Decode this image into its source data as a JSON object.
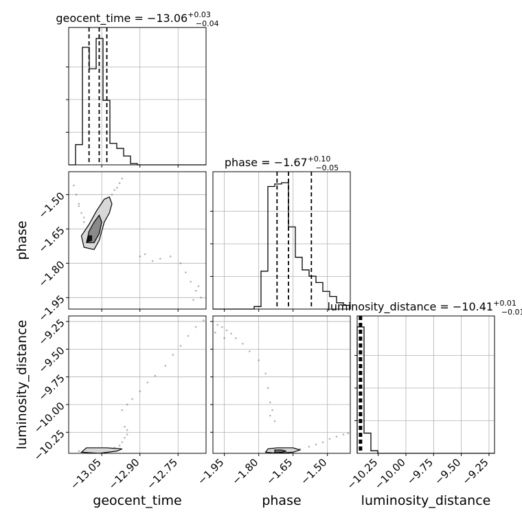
{
  "chart_data": {
    "type": "corner",
    "grid": true,
    "parameters": [
      {
        "name": "geocent_time",
        "axis_label": "geocent_time",
        "median": "−13.06",
        "plus": "+0.03",
        "minus": "−0.04",
        "range": [
          -13.18,
          -12.64
        ],
        "ticks": [
          -13.05,
          -12.9,
          -12.75
        ],
        "tick_labels": [
          "−13.05",
          "−12.90",
          "−12.75"
        ],
        "quantiles": [
          -13.1,
          -13.06,
          -13.03
        ],
        "hist_edges": [
          -13.18,
          -13.153,
          -13.126,
          -13.099,
          -13.072,
          -13.045,
          -13.018,
          -12.991,
          -12.964,
          -12.937,
          -12.91,
          -12.883,
          -12.856,
          -12.829,
          -12.802,
          -12.775,
          -12.748,
          -12.721,
          -12.694,
          -12.667,
          -12.64
        ],
        "hist_counts": [
          0.0,
          0.16,
          0.93,
          0.76,
          1.0,
          0.51,
          0.17,
          0.13,
          0.07,
          0.01,
          0.0,
          0.0,
          0.0,
          0.0,
          0.0,
          0.0,
          0.0,
          0.0,
          0.0,
          0.0
        ]
      },
      {
        "name": "phase",
        "axis_label": "phase",
        "median": "−1.67",
        "plus": "+0.10",
        "minus": "−0.05",
        "range": [
          -2.0,
          -1.4
        ],
        "ticks": [
          -1.95,
          -1.8,
          -1.65,
          -1.5
        ],
        "tick_labels": [
          "−1.95",
          "−1.80",
          "−1.65",
          "−1.50"
        ],
        "quantiles": [
          -1.72,
          -1.67,
          -1.57
        ],
        "hist_edges": [
          -2.0,
          -1.97,
          -1.94,
          -1.91,
          -1.88,
          -1.85,
          -1.82,
          -1.79,
          -1.76,
          -1.73,
          -1.7,
          -1.67,
          -1.64,
          -1.61,
          -1.58,
          -1.55,
          -1.52,
          -1.49,
          -1.46,
          -1.43,
          -1.4
        ],
        "hist_counts": [
          0.0,
          0.0,
          0.0,
          0.0,
          0.0,
          0.0,
          0.02,
          0.3,
          0.97,
          0.99,
          1.0,
          0.65,
          0.41,
          0.31,
          0.26,
          0.21,
          0.14,
          0.1,
          0.05,
          0.03
        ]
      },
      {
        "name": "luminosity_distance",
        "axis_label": "luminosity_distance",
        "median": "−10.41",
        "plus": "+0.01",
        "minus": "−0.01",
        "range": [
          -10.44,
          -9.2
        ],
        "ticks": [
          -10.25,
          -10.0,
          -9.75,
          -9.5,
          -9.25
        ],
        "tick_labels": [
          "−10.25",
          "−10.00",
          "−9.75",
          "−9.50",
          "−9.25"
        ],
        "quantiles": [
          -10.42,
          -10.41,
          -10.4
        ],
        "hist_edges": [
          -10.44,
          -10.378,
          -10.316,
          -10.254,
          -10.192,
          -10.13,
          -10.068,
          -10.006,
          -9.944,
          -9.882,
          -9.82,
          -9.758,
          -9.696,
          -9.634,
          -9.572,
          -9.51,
          -9.448,
          -9.386,
          -9.324,
          -9.262,
          -9.2
        ],
        "hist_counts": [
          1.0,
          0.16,
          0.02,
          0.0,
          0.0,
          0.0,
          0.0,
          0.0,
          0.0,
          0.0,
          0.0,
          0.0,
          0.0,
          0.0,
          0.0,
          0.0,
          0.0,
          0.0,
          0.0,
          0.0
        ]
      }
    ],
    "samples": {
      "geocent_time_vs_phase": [
        [
          -13.1,
          -1.7
        ],
        [
          -13.09,
          -1.69
        ],
        [
          -13.11,
          -1.72
        ],
        [
          -13.1,
          -1.66
        ],
        [
          -13.08,
          -1.68
        ],
        [
          -13.12,
          -1.62
        ],
        [
          -13.13,
          -1.58
        ],
        [
          -13.14,
          -1.54
        ],
        [
          -13.15,
          -1.5
        ],
        [
          -13.16,
          -1.46
        ],
        [
          -13.14,
          -1.55
        ],
        [
          -13.12,
          -1.6
        ],
        [
          -13.07,
          -1.64
        ],
        [
          -13.06,
          -1.62
        ],
        [
          -13.05,
          -1.6
        ],
        [
          -13.05,
          -1.58
        ],
        [
          -13.04,
          -1.56
        ],
        [
          -13.03,
          -1.54
        ],
        [
          -13.02,
          -1.52
        ],
        [
          -13.01,
          -1.5
        ],
        [
          -13.0,
          -1.48
        ],
        [
          -12.99,
          -1.47
        ],
        [
          -12.98,
          -1.45
        ],
        [
          -12.97,
          -1.43
        ],
        [
          -13.06,
          -1.66
        ],
        [
          -13.05,
          -1.63
        ],
        [
          -13.04,
          -1.59
        ],
        [
          -13.03,
          -1.57
        ],
        [
          -12.9,
          -1.77
        ],
        [
          -12.88,
          -1.76
        ],
        [
          -12.85,
          -1.79
        ],
        [
          -12.82,
          -1.78
        ],
        [
          -12.78,
          -1.77
        ],
        [
          -12.74,
          -1.8
        ],
        [
          -12.72,
          -1.84
        ],
        [
          -12.7,
          -1.88
        ],
        [
          -12.68,
          -1.92
        ],
        [
          -12.66,
          -1.95
        ],
        [
          -12.69,
          -1.96
        ],
        [
          -12.67,
          -1.9
        ]
      ],
      "geocent_time_vs_luminosity_distance": [
        [
          -13.1,
          -10.42
        ],
        [
          -13.08,
          -10.41
        ],
        [
          -13.06,
          -10.42
        ],
        [
          -13.04,
          -10.41
        ],
        [
          -13.02,
          -10.4
        ],
        [
          -13.0,
          -10.39
        ],
        [
          -12.98,
          -10.37
        ],
        [
          -12.97,
          -10.34
        ],
        [
          -12.96,
          -10.3
        ],
        [
          -12.95,
          -10.27
        ],
        [
          -12.95,
          -10.23
        ],
        [
          -12.96,
          -10.2
        ],
        [
          -12.97,
          -10.05
        ],
        [
          -12.95,
          -10.0
        ],
        [
          -12.93,
          -9.95
        ],
        [
          -12.9,
          -9.88
        ],
        [
          -12.87,
          -9.8
        ],
        [
          -12.84,
          -9.74
        ],
        [
          -12.8,
          -9.65
        ],
        [
          -12.77,
          -9.55
        ],
        [
          -12.74,
          -9.47
        ],
        [
          -12.71,
          -9.38
        ],
        [
          -12.68,
          -9.3
        ],
        [
          -12.65,
          -9.24
        ],
        [
          -13.12,
          -10.42
        ],
        [
          -13.14,
          -10.42
        ],
        [
          -13.09,
          -10.4
        ],
        [
          -13.05,
          -10.4
        ]
      ],
      "phase_vs_luminosity_distance": [
        [
          -1.72,
          -10.42
        ],
        [
          -1.7,
          -10.42
        ],
        [
          -1.68,
          -10.41
        ],
        [
          -1.65,
          -10.41
        ],
        [
          -1.62,
          -10.4
        ],
        [
          -1.58,
          -10.38
        ],
        [
          -1.55,
          -10.36
        ],
        [
          -1.52,
          -10.34
        ],
        [
          -1.49,
          -10.31
        ],
        [
          -1.46,
          -10.29
        ],
        [
          -1.43,
          -10.27
        ],
        [
          -1.41,
          -10.26
        ],
        [
          -1.98,
          -9.28
        ],
        [
          -1.96,
          -9.3
        ],
        [
          -1.94,
          -9.33
        ],
        [
          -1.92,
          -9.36
        ],
        [
          -1.9,
          -9.4
        ],
        [
          -1.87,
          -9.45
        ],
        [
          -1.84,
          -9.52
        ],
        [
          -1.8,
          -9.6
        ],
        [
          -1.77,
          -9.72
        ],
        [
          -1.76,
          -9.85
        ],
        [
          -1.75,
          -9.98
        ],
        [
          -1.74,
          -10.05
        ],
        [
          -1.99,
          -9.35
        ],
        [
          -1.95,
          -9.4
        ],
        [
          -1.75,
          -10.1
        ],
        [
          -1.73,
          -10.15
        ]
      ]
    },
    "contours": {
      "geocent_time_vs_phase": [
        [
          [
            -13.12,
            -1.73
          ],
          [
            -13.08,
            -1.74
          ],
          [
            -13.06,
            -1.7
          ],
          [
            -13.04,
            -1.62
          ],
          [
            -13.02,
            -1.58
          ],
          [
            -13.01,
            -1.54
          ],
          [
            -13.02,
            -1.51
          ],
          [
            -13.04,
            -1.52
          ],
          [
            -13.07,
            -1.57
          ],
          [
            -13.1,
            -1.63
          ],
          [
            -13.13,
            -1.68
          ],
          [
            -13.12,
            -1.73
          ]
        ],
        [
          [
            -13.11,
            -1.71
          ],
          [
            -13.08,
            -1.71
          ],
          [
            -13.06,
            -1.67
          ],
          [
            -13.05,
            -1.62
          ],
          [
            -13.06,
            -1.59
          ],
          [
            -13.08,
            -1.62
          ],
          [
            -13.1,
            -1.66
          ],
          [
            -13.11,
            -1.71
          ]
        ],
        [
          [
            -13.106,
            -1.705
          ],
          [
            -13.09,
            -1.7
          ],
          [
            -13.09,
            -1.68
          ],
          [
            -13.1,
            -1.68
          ],
          [
            -13.106,
            -1.705
          ]
        ]
      ],
      "phase_vs_luminosity_distance": [
        [
          [
            -1.77,
            -10.43
          ],
          [
            -1.72,
            -10.44
          ],
          [
            -1.65,
            -10.43
          ],
          [
            -1.62,
            -10.41
          ],
          [
            -1.65,
            -10.39
          ],
          [
            -1.72,
            -10.39
          ],
          [
            -1.76,
            -10.4
          ],
          [
            -1.77,
            -10.43
          ]
        ],
        [
          [
            -1.73,
            -10.43
          ],
          [
            -1.7,
            -10.43
          ],
          [
            -1.68,
            -10.42
          ],
          [
            -1.7,
            -10.41
          ],
          [
            -1.73,
            -10.41
          ],
          [
            -1.73,
            -10.43
          ]
        ]
      ],
      "geocent_time_vs_luminosity_distance": [
        [
          [
            -13.13,
            -10.43
          ],
          [
            -13.06,
            -10.44
          ],
          [
            -12.99,
            -10.42
          ],
          [
            -12.97,
            -10.4
          ],
          [
            -13.03,
            -10.39
          ],
          [
            -13.11,
            -10.39
          ],
          [
            -13.13,
            -10.43
          ]
        ]
      ]
    }
  }
}
